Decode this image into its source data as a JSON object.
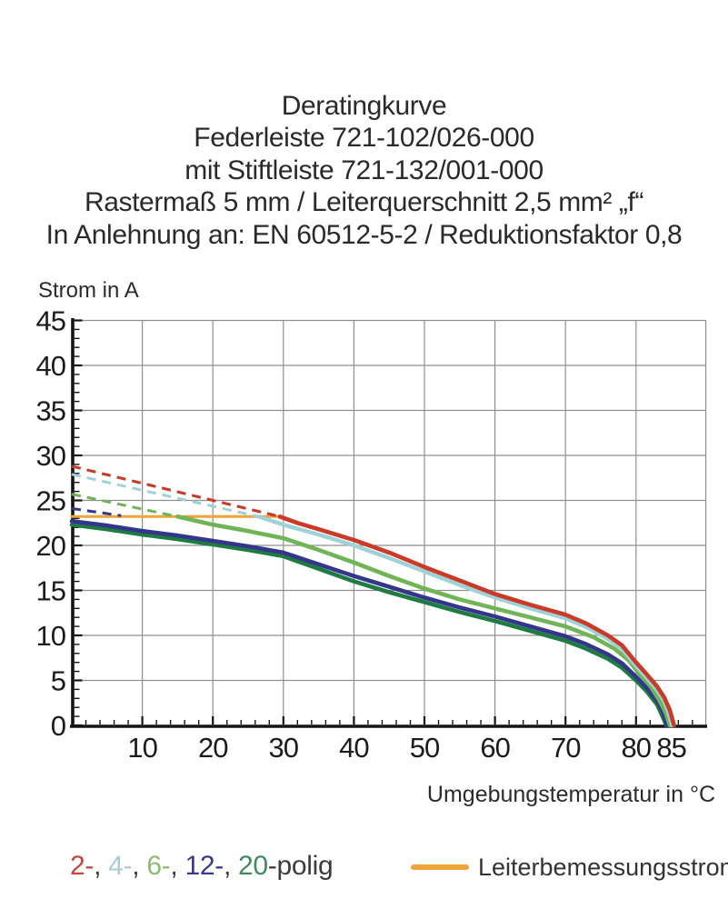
{
  "page_background": "#ffffff",
  "title": {
    "lines": [
      "Deratingkurve",
      "Federleiste 721-102/026-000",
      "mit Stiftleiste 721-132/001-000",
      "Rastermaß 5 mm / Leiterquerschnitt 2,5 mm² „f“",
      "In Anlehnung an: EN 60512-5-2 / Reduktionsfaktor 0,8"
    ]
  },
  "chart_data": {
    "type": "line",
    "title": "Deratingkurve",
    "xlabel": "Umgebungstemperatur in °C",
    "ylabel": "Strom in A",
    "xlim": [
      0,
      90
    ],
    "ylim": [
      0,
      45
    ],
    "x_major_ticks": [
      10,
      20,
      30,
      40,
      50,
      60,
      70,
      80,
      85
    ],
    "x_minor_tick_step": 2,
    "y_major_ticks": [
      0,
      5,
      10,
      15,
      20,
      25,
      30,
      35,
      40,
      45
    ],
    "y_minor_tick_step": 1,
    "grid": {
      "color": "#8f8f8f",
      "x_lines": [
        10,
        20,
        30,
        40,
        50,
        60,
        70,
        80,
        89.9
      ],
      "y_lines": [
        5,
        10,
        15,
        20,
        25,
        30,
        35,
        40,
        45
      ]
    },
    "axis_color": "#141414",
    "legend_position": "bottom",
    "series": [
      {
        "name": "Leiterbemessungsstrom",
        "color": "#f0a23b",
        "style": "solid",
        "width": 3,
        "points": [
          [
            0,
            23.2
          ],
          [
            29.5,
            23.2
          ]
        ]
      },
      {
        "name": "2-polig",
        "color": "#cb3927",
        "style": "dashed",
        "width": 3,
        "points": [
          [
            0,
            28.8
          ],
          [
            29.5,
            23.2
          ]
        ]
      },
      {
        "name": "4-polig",
        "color": "#9ed2d6",
        "style": "dashed",
        "width": 3,
        "points": [
          [
            0,
            27.9
          ],
          [
            26.5,
            23.2
          ]
        ]
      },
      {
        "name": "6-polig",
        "color": "#6fb457",
        "style": "dashed",
        "width": 3,
        "points": [
          [
            0,
            25.7
          ],
          [
            15,
            23.2
          ]
        ]
      },
      {
        "name": "12-polig",
        "color": "#34368c",
        "style": "dashed",
        "width": 3,
        "points": [
          [
            0,
            24.1
          ],
          [
            7,
            23.3
          ]
        ]
      },
      {
        "name": "20-polig",
        "color": "#1e7b42",
        "style": "solid",
        "width": 4.6,
        "points": [
          [
            0,
            22.3
          ],
          [
            5,
            21.8
          ],
          [
            10,
            21.2
          ],
          [
            15,
            20.7
          ],
          [
            20,
            20.1
          ],
          [
            25,
            19.5
          ],
          [
            30,
            18.8
          ],
          [
            35,
            17.4
          ],
          [
            40,
            16.0
          ],
          [
            45,
            14.8
          ],
          [
            50,
            13.7
          ],
          [
            55,
            12.6
          ],
          [
            60,
            11.6
          ],
          [
            65,
            10.5
          ],
          [
            70,
            9.4
          ],
          [
            73,
            8.5
          ],
          [
            76,
            7.4
          ],
          [
            78,
            6.4
          ],
          [
            80,
            5.0
          ],
          [
            81.5,
            3.8
          ],
          [
            83,
            2.3
          ],
          [
            83.7,
            1.1
          ],
          [
            84.3,
            0
          ]
        ]
      },
      {
        "name": "12-polig",
        "color": "#34368c",
        "style": "solid",
        "width": 4.6,
        "points": [
          [
            0,
            22.7
          ],
          [
            5,
            22.2
          ],
          [
            10,
            21.6
          ],
          [
            15,
            21.1
          ],
          [
            20,
            20.5
          ],
          [
            25,
            19.9
          ],
          [
            30,
            19.2
          ],
          [
            35,
            17.9
          ],
          [
            40,
            16.6
          ],
          [
            45,
            15.4
          ],
          [
            50,
            14.2
          ],
          [
            55,
            13.1
          ],
          [
            60,
            12.1
          ],
          [
            65,
            11.0
          ],
          [
            70,
            9.9
          ],
          [
            73,
            9.0
          ],
          [
            76,
            7.9
          ],
          [
            78,
            6.9
          ],
          [
            80,
            5.4
          ],
          [
            81.5,
            4.2
          ],
          [
            83,
            2.7
          ],
          [
            83.8,
            1.5
          ],
          [
            84.4,
            0
          ]
        ]
      },
      {
        "name": "6-polig",
        "color": "#6fb457",
        "style": "solid",
        "width": 4.6,
        "points": [
          [
            15,
            23.2
          ],
          [
            20,
            22.3
          ],
          [
            25,
            21.6
          ],
          [
            30,
            20.8
          ],
          [
            35,
            19.5
          ],
          [
            40,
            18.1
          ],
          [
            45,
            16.6
          ],
          [
            50,
            15.2
          ],
          [
            55,
            14.0
          ],
          [
            60,
            13.0
          ],
          [
            65,
            12.0
          ],
          [
            70,
            11.0
          ],
          [
            74,
            9.8
          ],
          [
            77,
            8.5
          ],
          [
            79,
            7.2
          ],
          [
            80.5,
            5.7
          ],
          [
            82,
            4.4
          ],
          [
            83.3,
            2.8
          ],
          [
            84.2,
            1.4
          ],
          [
            84.8,
            0
          ]
        ]
      },
      {
        "name": "4-polig",
        "color": "#9ed2d6",
        "style": "solid",
        "width": 4.4,
        "points": [
          [
            26.5,
            23.2
          ],
          [
            30,
            22.3
          ],
          [
            35,
            21.2
          ],
          [
            40,
            20.0
          ],
          [
            45,
            18.6
          ],
          [
            50,
            17.1
          ],
          [
            55,
            15.6
          ],
          [
            60,
            14.2
          ],
          [
            65,
            13.0
          ],
          [
            70,
            11.9
          ],
          [
            73,
            10.9
          ],
          [
            76,
            9.6
          ],
          [
            78,
            8.5
          ],
          [
            80,
            6.6
          ],
          [
            81.5,
            5.3
          ],
          [
            83,
            3.9
          ],
          [
            84,
            2.7
          ],
          [
            84.6,
            1.4
          ],
          [
            85.1,
            0
          ]
        ]
      },
      {
        "name": "2-polig",
        "color": "#cb3927",
        "style": "solid",
        "width": 4.6,
        "points": [
          [
            29.5,
            23.2
          ],
          [
            32,
            22.5
          ],
          [
            35,
            21.8
          ],
          [
            40,
            20.6
          ],
          [
            45,
            19.2
          ],
          [
            50,
            17.6
          ],
          [
            55,
            16.1
          ],
          [
            60,
            14.6
          ],
          [
            65,
            13.4
          ],
          [
            70,
            12.3
          ],
          [
            73,
            11.3
          ],
          [
            76,
            10.0
          ],
          [
            78,
            8.9
          ],
          [
            80,
            7.0
          ],
          [
            81.5,
            5.7
          ],
          [
            83,
            4.3
          ],
          [
            84,
            3.1
          ],
          [
            84.8,
            1.7
          ],
          [
            85.4,
            0
          ]
        ]
      }
    ]
  },
  "legend": {
    "poles": [
      {
        "text": "2-",
        "color": "#c6453a"
      },
      {
        "text": "4-",
        "color": "#a9cdd8"
      },
      {
        "text": "6-",
        "color": "#8cbd6d"
      },
      {
        "text": "12-",
        "color": "#39388a"
      },
      {
        "text": "20",
        "color": "#3f8a60"
      }
    ],
    "separator": ", ",
    "suffix": "-polig",
    "rated_label": "Leiterbemessungsstrom",
    "rated_color": "#f0a23b"
  }
}
